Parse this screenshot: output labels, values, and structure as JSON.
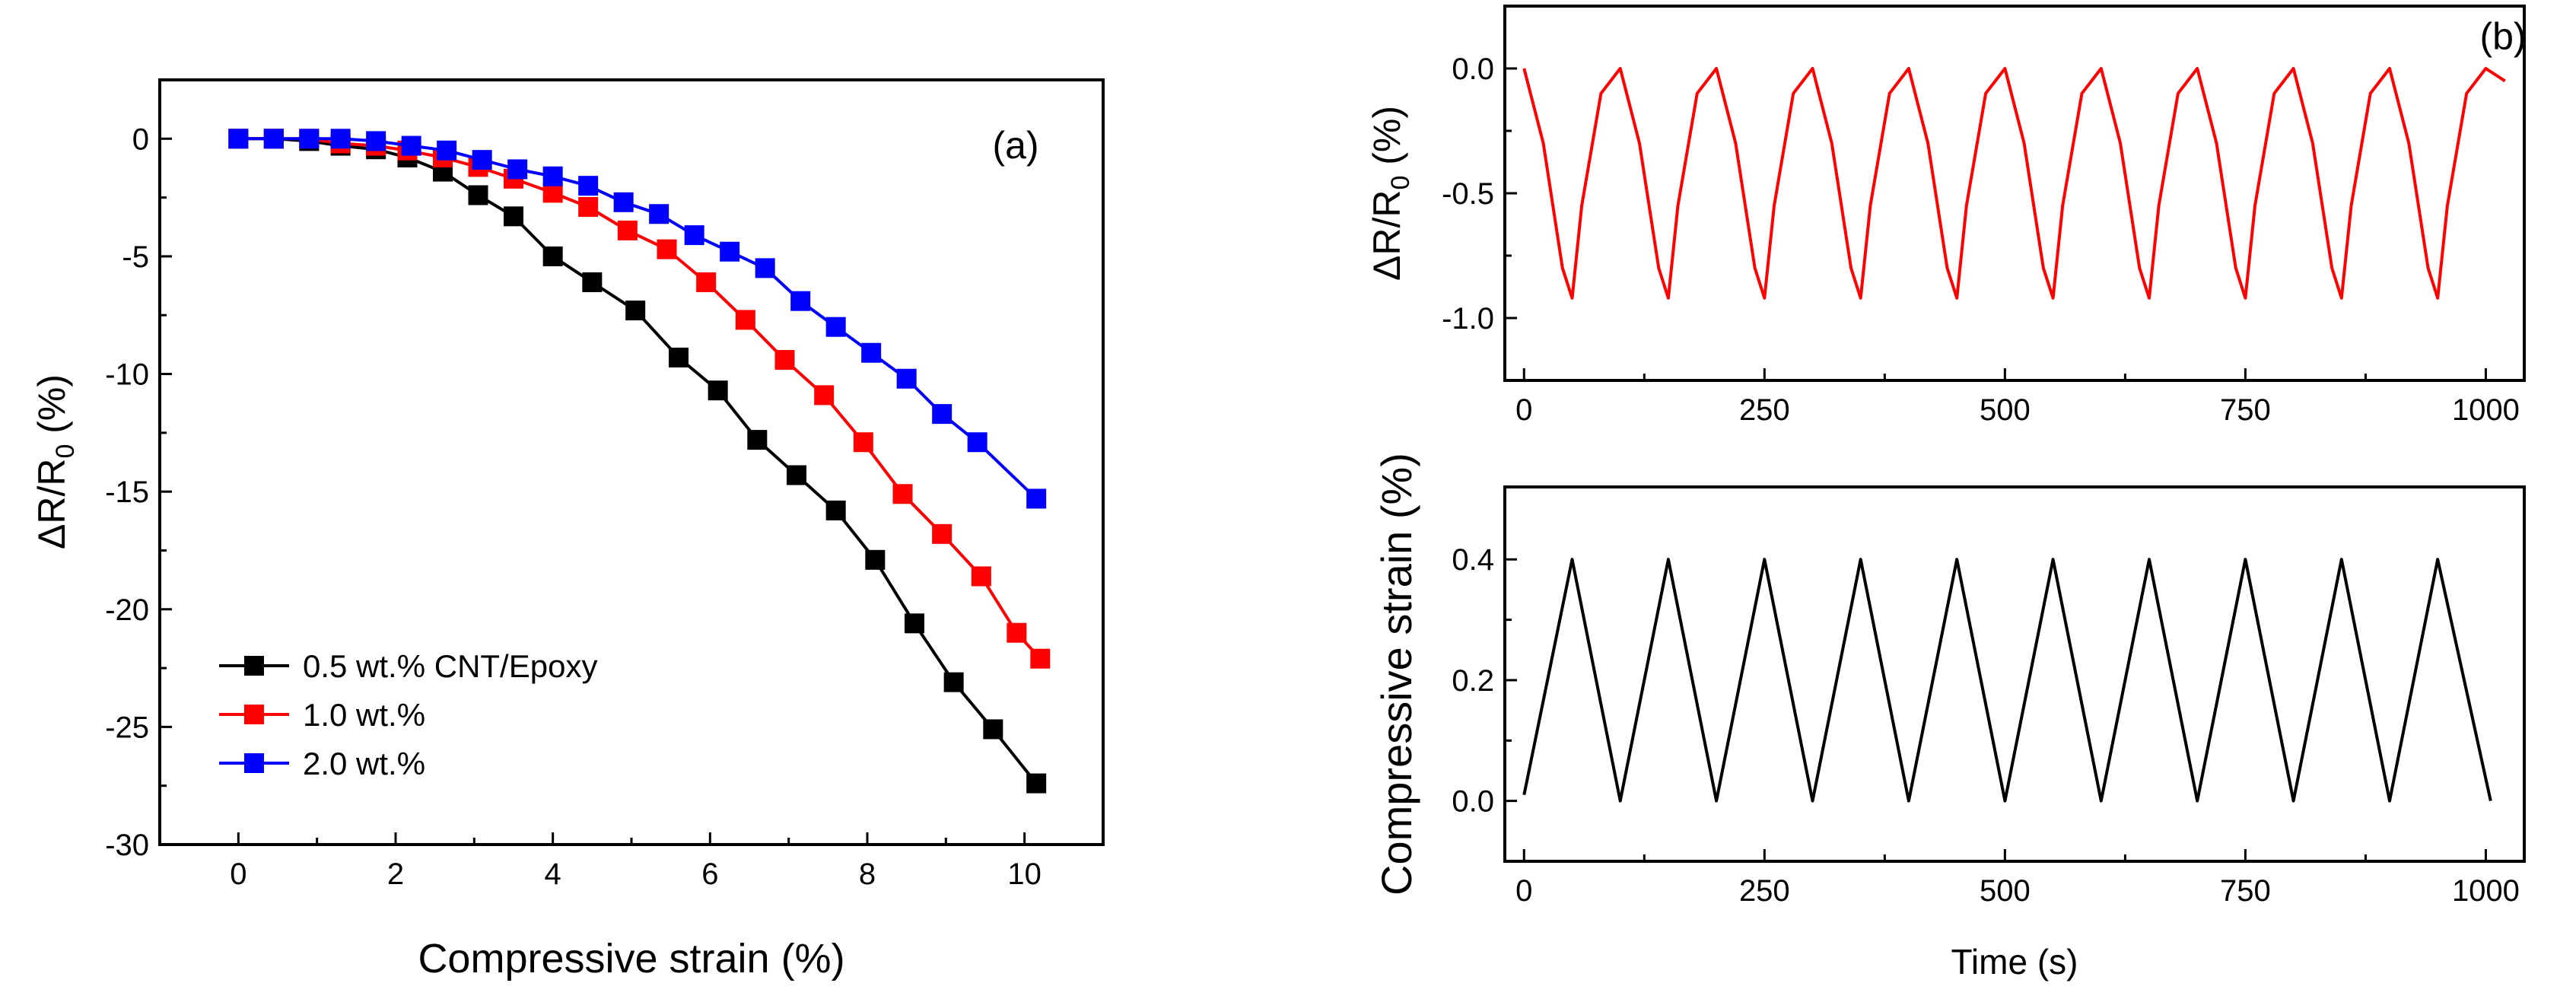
{
  "chart_data": [
    {
      "type": "line",
      "panel_label": "(a)",
      "xlabel": "Compressive strain (%)",
      "ylabel": "ΔR/R",
      "ylabel_sub": "0",
      "ylabel_tail": " (%)",
      "xlim": [
        -1,
        11
      ],
      "ylim": [
        -30,
        2.5
      ],
      "xticks": [
        0,
        2,
        4,
        6,
        8,
        10
      ],
      "yticks": [
        0,
        -5,
        -10,
        -15,
        -20,
        -25,
        -30
      ],
      "grid": false,
      "legend_position": "bottom-left",
      "series": [
        {
          "name": "0.5 wt.% CNT/Epoxy",
          "color": "#000000",
          "marker": "square",
          "x": [
            0,
            0.45,
            0.9,
            1.3,
            1.75,
            2.15,
            2.6,
            3.05,
            3.5,
            4.0,
            4.5,
            5.05,
            5.6,
            6.1,
            6.6,
            7.1,
            7.6,
            8.1,
            8.6,
            9.1,
            9.6,
            10.15
          ],
          "y": [
            0,
            0,
            -0.1,
            -0.3,
            -0.45,
            -0.8,
            -1.4,
            -2.4,
            -3.3,
            -5.0,
            -6.1,
            -7.3,
            -9.3,
            -10.7,
            -12.8,
            -14.3,
            -15.8,
            -17.9,
            -20.6,
            -23.1,
            -25.1,
            -27.4
          ]
        },
        {
          "name": "1.0 wt.%",
          "color": "#ff0000",
          "marker": "square",
          "x": [
            0,
            0.45,
            0.9,
            1.3,
            1.75,
            2.15,
            2.6,
            3.05,
            3.5,
            4.0,
            4.45,
            4.95,
            5.45,
            5.95,
            6.45,
            6.95,
            7.45,
            7.95,
            8.45,
            8.95,
            9.45,
            9.9,
            10.2
          ],
          "y": [
            0,
            0,
            0,
            -0.2,
            -0.3,
            -0.5,
            -0.8,
            -1.2,
            -1.7,
            -2.3,
            -2.9,
            -3.9,
            -4.7,
            -6.1,
            -7.7,
            -9.4,
            -10.9,
            -12.9,
            -15.1,
            -16.8,
            -18.6,
            -21.0,
            -22.1
          ]
        },
        {
          "name": "2.0 wt.%",
          "color": "#0000ff",
          "marker": "square",
          "x": [
            0,
            0.45,
            0.9,
            1.3,
            1.75,
            2.2,
            2.65,
            3.1,
            3.55,
            4.0,
            4.45,
            4.9,
            5.35,
            5.8,
            6.25,
            6.7,
            7.15,
            7.6,
            8.05,
            8.5,
            8.95,
            9.4,
            10.15
          ],
          "y": [
            0,
            0,
            0,
            0,
            -0.1,
            -0.3,
            -0.5,
            -0.9,
            -1.3,
            -1.6,
            -2.0,
            -2.7,
            -3.2,
            -4.1,
            -4.8,
            -5.5,
            -6.9,
            -8.0,
            -9.1,
            -10.2,
            -11.7,
            -12.9,
            -15.3
          ]
        }
      ]
    },
    {
      "type": "line",
      "panel_label": "(b)",
      "xlabel": "",
      "ylabel": "ΔR/R",
      "ylabel_sub": "0",
      "ylabel_tail": " (%)",
      "xlim": [
        -20,
        1040
      ],
      "ylim": [
        -1.25,
        0.25
      ],
      "xticks": [
        0,
        250,
        500,
        750,
        1000
      ],
      "yticks": [
        0.0,
        -0.5,
        -1.0
      ],
      "ytick_labels": [
        "0.0",
        "-0.5",
        "-1.0"
      ],
      "grid": false,
      "series": [
        {
          "color": "#ff0000",
          "x": [
            0,
            20,
            40,
            50,
            60,
            80,
            100,
            120,
            140,
            150,
            160,
            180,
            200,
            220,
            240,
            250,
            260,
            280,
            300,
            320,
            340,
            350,
            360,
            380,
            400,
            420,
            440,
            450,
            460,
            480,
            500,
            520,
            540,
            550,
            560,
            580,
            600,
            620,
            640,
            650,
            660,
            680,
            700,
            720,
            740,
            750,
            760,
            780,
            800,
            820,
            840,
            850,
            860,
            880,
            900,
            920,
            940,
            950,
            960,
            980,
            1000,
            1020
          ],
          "y": [
            0,
            -0.3,
            -0.8,
            -0.92,
            -0.55,
            -0.1,
            0,
            -0.3,
            -0.8,
            -0.92,
            -0.55,
            -0.1,
            0,
            -0.3,
            -0.8,
            -0.92,
            -0.55,
            -0.1,
            0,
            -0.3,
            -0.8,
            -0.92,
            -0.55,
            -0.1,
            0,
            -0.3,
            -0.8,
            -0.92,
            -0.55,
            -0.1,
            0,
            -0.3,
            -0.8,
            -0.92,
            -0.55,
            -0.1,
            0,
            -0.3,
            -0.8,
            -0.92,
            -0.55,
            -0.1,
            0,
            -0.3,
            -0.8,
            -0.92,
            -0.55,
            -0.1,
            0,
            -0.3,
            -0.8,
            -0.92,
            -0.55,
            -0.1,
            0,
            -0.3,
            -0.8,
            -0.92,
            -0.55,
            -0.1,
            0,
            -0.05
          ]
        }
      ]
    },
    {
      "type": "line",
      "xlabel": "Time (s)",
      "ylabel": "Compressive strain (%)",
      "xlim": [
        -20,
        1040
      ],
      "ylim": [
        -0.1,
        0.52
      ],
      "xticks": [
        0,
        250,
        500,
        750,
        1000
      ],
      "yticks": [
        0.0,
        0.2,
        0.4
      ],
      "ytick_labels": [
        "0.0",
        "0.2",
        "0.4"
      ],
      "grid": false,
      "series": [
        {
          "color": "#000000",
          "x": [
            0,
            50,
            100,
            150,
            200,
            250,
            300,
            350,
            400,
            450,
            500,
            550,
            600,
            650,
            700,
            750,
            800,
            850,
            900,
            950,
            1005
          ],
          "y": [
            0.01,
            0.4,
            0,
            0.4,
            0,
            0.4,
            0,
            0.4,
            0,
            0.4,
            0,
            0.4,
            0,
            0.4,
            0,
            0.4,
            0,
            0.4,
            0,
            0.4,
            0
          ]
        }
      ]
    }
  ]
}
